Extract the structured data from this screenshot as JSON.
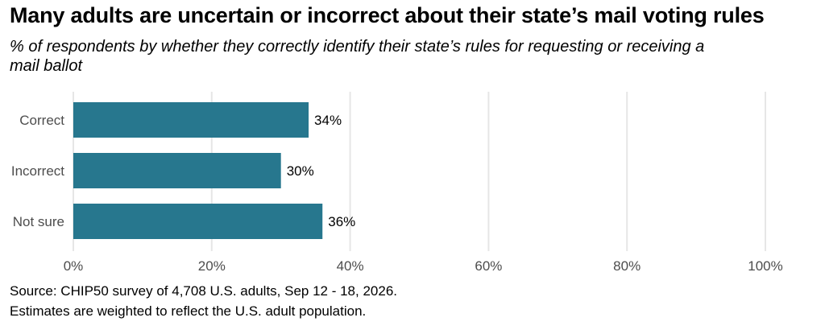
{
  "chart_data": {
    "type": "bar",
    "orientation": "horizontal",
    "title": "Many adults are uncertain or incorrect about their state’s mail voting rules",
    "subtitle": "% of respondents by whether they correctly identify their state’s rules for requesting or receiving a mail ballot",
    "categories": [
      "Correct",
      "Incorrect",
      "Not sure"
    ],
    "values": [
      34,
      30,
      36
    ],
    "data_labels": [
      "34%",
      "30%",
      "36%"
    ],
    "xlim": [
      0,
      100
    ],
    "xticks": [
      0,
      20,
      40,
      60,
      80,
      100
    ],
    "xtick_labels": [
      "0%",
      "20%",
      "40%",
      "60%",
      "80%",
      "100%"
    ],
    "xlabel": "",
    "ylabel": "",
    "grid": "vertical",
    "legend": "none",
    "bar_color": "#27778e",
    "grid_color": "#e6e6e6"
  },
  "captions": {
    "source": "Source: CHIP50 survey of 4,708 U.S. adults, Sep 12 - 18, 2026.",
    "note": "Estimates are weighted to reflect the U.S. adult population."
  }
}
